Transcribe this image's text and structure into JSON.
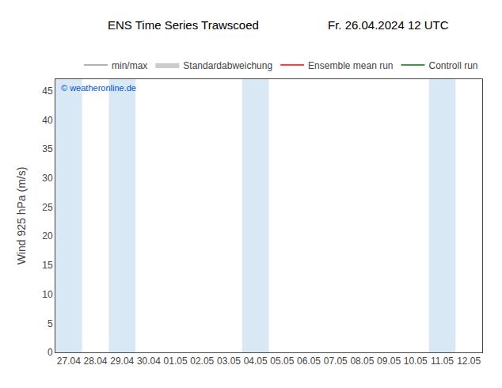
{
  "chart_data": {
    "type": "line",
    "title": "ENS Time Series Trawscoed",
    "subtitle": "Fr. 26.04.2024 12 UTC",
    "y_label": "Wind 925 hPa (m/s)",
    "categories": [
      "27.04",
      "28.04",
      "29.04",
      "30.04",
      "01.05",
      "02.05",
      "03.05",
      "04.05",
      "05.05",
      "06.05",
      "07.05",
      "08.05",
      "09.05",
      "10.05",
      "11.05",
      "12.05"
    ],
    "series": [
      {
        "name": "min/max",
        "type": "line",
        "color": "#999999",
        "values": [
          null,
          null,
          null,
          null,
          null,
          null,
          null,
          null,
          null,
          null,
          null,
          null,
          null,
          null,
          null,
          null
        ]
      },
      {
        "name": "Standardabweichung",
        "type": "area",
        "color": "#cccccc",
        "values": [
          null,
          null,
          null,
          null,
          null,
          null,
          null,
          null,
          null,
          null,
          null,
          null,
          null,
          null,
          null,
          null
        ]
      },
      {
        "name": "Ensemble mean run",
        "type": "line",
        "color": "#ff0000",
        "values": [
          null,
          null,
          null,
          null,
          null,
          null,
          null,
          null,
          null,
          null,
          null,
          null,
          null,
          null,
          null,
          null
        ]
      },
      {
        "name": "Controll run",
        "type": "line",
        "color": "#007700",
        "values": [
          null,
          null,
          null,
          null,
          null,
          null,
          null,
          null,
          null,
          null,
          null,
          null,
          null,
          null,
          null,
          null
        ]
      }
    ],
    "shaded_categories": [
      "27.04",
      "29.04",
      "04.05",
      "11.05"
    ],
    "shaded_color": "#d8e8f5",
    "annotations": [
      {
        "text": "© weatheronline.de",
        "color": "#0055cc"
      }
    ],
    "ylim": [
      0,
      47
    ],
    "yticks": [
      0,
      5,
      10,
      15,
      20,
      25,
      30,
      35,
      40,
      45
    ],
    "grid": false,
    "legend": "upper right"
  }
}
